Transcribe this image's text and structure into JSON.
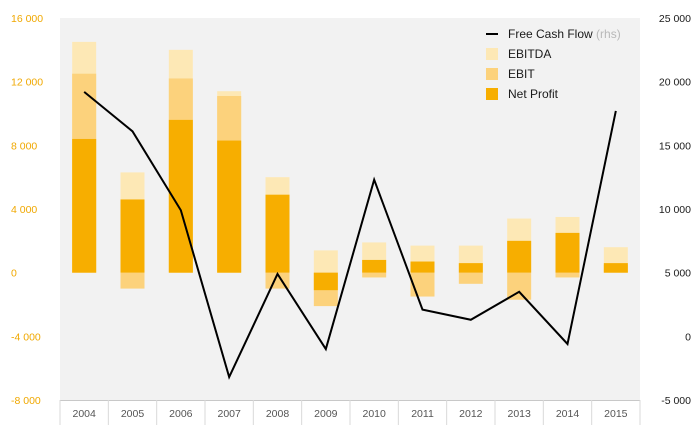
{
  "chart_data": {
    "type": "bar",
    "categories": [
      "2004",
      "2005",
      "2006",
      "2007",
      "2008",
      "2009",
      "2010",
      "2011",
      "2012",
      "2013",
      "2014",
      "2015"
    ],
    "stacking": "overlay",
    "series": [
      {
        "name": "EBITDA",
        "kind": "bar",
        "axis": "left",
        "color": "#fde8b5",
        "values": [
          14500,
          6300,
          14000,
          11400,
          6000,
          1400,
          1900,
          1700,
          1700,
          3400,
          3500,
          1600
        ]
      },
      {
        "name": "EBIT",
        "kind": "bar",
        "axis": "left",
        "color": "#fcd27c",
        "values": [
          12500,
          -1000,
          12200,
          11100,
          -1000,
          -2100,
          -300,
          -1500,
          -700,
          -1700,
          -300,
          500
        ]
      },
      {
        "name": "Net Profit",
        "kind": "bar",
        "axis": "left",
        "color": "#f7ae00",
        "values": [
          8400,
          4600,
          9600,
          8300,
          4900,
          -1100,
          800,
          700,
          600,
          2000,
          2500,
          600
        ]
      },
      {
        "name": "Free Cash Flow",
        "note": "(rhs)",
        "kind": "line",
        "axis": "right",
        "color": "#000000",
        "values": [
          19200,
          16100,
          9900,
          -3200,
          4900,
          -1000,
          12300,
          2100,
          1300,
          3500,
          -600,
          17700
        ]
      }
    ],
    "y_left": {
      "ylim": [
        -8000,
        16000
      ],
      "ticks": [
        16000,
        12000,
        8000,
        4000,
        0,
        -4000,
        -8000
      ],
      "tick_labels": [
        "16 000",
        "12 000",
        "8 000",
        "4 000",
        "0",
        "-4 000",
        "-8 000"
      ],
      "color": "#f0a800"
    },
    "y_right": {
      "ylim": [
        -5000,
        25000
      ],
      "ticks": [
        25000,
        20000,
        15000,
        10000,
        5000,
        0,
        -5000
      ],
      "tick_labels": [
        "25 000",
        "20 000",
        "15 000",
        "10 000",
        "5 000",
        "0",
        "-5 000"
      ],
      "color": "#1a1a1a"
    },
    "legend": {
      "position": "top-right",
      "order": [
        "Free Cash Flow",
        "EBITDA",
        "EBIT",
        "Net Profit"
      ]
    },
    "grid": false,
    "background": "#f2f2f2"
  }
}
